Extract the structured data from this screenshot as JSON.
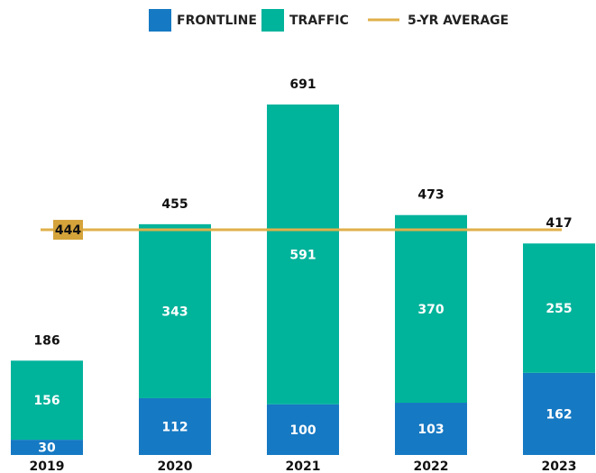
{
  "chart_data": {
    "type": "bar",
    "categories": [
      "2019",
      "2020",
      "2021",
      "2022",
      "2023"
    ],
    "series": [
      {
        "name": "FRONTLINE",
        "color": "#1679c3",
        "values": [
          30,
          112,
          100,
          103,
          162
        ]
      },
      {
        "name": "TRAFFIC",
        "color": "#00b39b",
        "values": [
          156,
          343,
          591,
          370,
          255
        ]
      }
    ],
    "totals": [
      186,
      455,
      691,
      473,
      417
    ],
    "average": {
      "name": "5-YR AVERAGE",
      "value": 444,
      "color": "#e0b04a",
      "label_color": "#d4a33a"
    }
  }
}
